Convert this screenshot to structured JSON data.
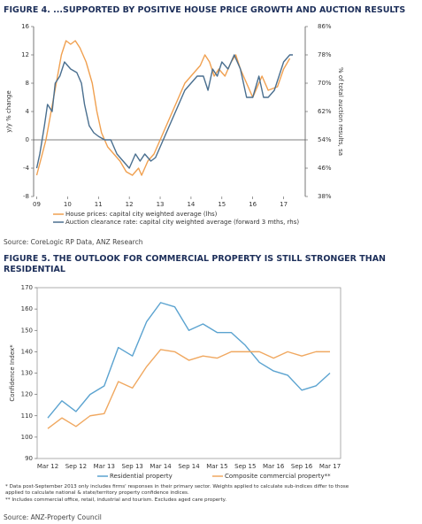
{
  "chart_data": [
    {
      "type": "line",
      "title": "FIGURE 4. ...SUPPORTED BY POSITIVE HOUSE PRICE GROWTH AND AUCTION RESULTS",
      "ylabel": "y/y % change",
      "y2label": "% of total auction results, sa",
      "xlim": [
        2008.9,
        2017.7
      ],
      "xticks": [
        {
          "value": 2009,
          "label": "09"
        },
        {
          "value": 2010,
          "label": "10"
        },
        {
          "value": 2011,
          "label": "11"
        },
        {
          "value": 2012,
          "label": "12"
        },
        {
          "value": 2013,
          "label": "13"
        },
        {
          "value": 2014,
          "label": "14"
        },
        {
          "value": 2015,
          "label": "15"
        },
        {
          "value": 2016,
          "label": "16"
        },
        {
          "value": 2017,
          "label": "17"
        }
      ],
      "ylim": [
        -8,
        16
      ],
      "yticks": [
        -8,
        -4,
        0,
        4,
        8,
        12,
        16
      ],
      "y2lim": [
        38,
        86
      ],
      "y2ticks": [
        {
          "value": 38,
          "label": "38%"
        },
        {
          "value": 46,
          "label": "46%"
        },
        {
          "value": 54,
          "label": "54%"
        },
        {
          "value": 62,
          "label": "62%"
        },
        {
          "value": 70,
          "label": "70%"
        },
        {
          "value": 78,
          "label": "78%"
        },
        {
          "value": 86,
          "label": "86%"
        }
      ],
      "legend": "bottom",
      "series": [
        {
          "name": "House prices: capital city weighted average (lhs)",
          "color": "#f0a050",
          "x": [
            2009.0,
            2009.3,
            2009.55,
            2009.8,
            2009.95,
            2010.1,
            2010.25,
            2010.4,
            2010.6,
            2010.8,
            2010.95,
            2011.1,
            2011.3,
            2011.5,
            2011.7,
            2011.9,
            2012.1,
            2012.3,
            2012.4,
            2012.6,
            2012.8,
            2013.0,
            2013.2,
            2013.4,
            2013.6,
            2013.8,
            2014.0,
            2014.3,
            2014.45,
            2014.6,
            2014.75,
            2014.9,
            2015.1,
            2015.3,
            2015.45,
            2015.6,
            2015.8,
            2016.0,
            2016.2,
            2016.3,
            2016.5,
            2016.8,
            2017.0,
            2017.2
          ],
          "values": [
            -5,
            0,
            6,
            12,
            14,
            13.5,
            14,
            13,
            11,
            8,
            4,
            1,
            -1,
            -2,
            -3,
            -4.5,
            -5,
            -4,
            -5,
            -3,
            -2,
            0,
            2,
            4,
            6,
            8,
            9,
            10.5,
            12,
            11,
            9,
            10,
            9,
            11,
            12,
            10,
            8,
            6,
            8,
            9,
            7,
            7.5,
            10,
            11.5
          ]
        },
        {
          "name": "Auction clearance rate: capital city weighted average (forward 3 mths, rhs)",
          "color": "#4a6f8f",
          "axis": "y2",
          "x": [
            2009.0,
            2009.1,
            2009.25,
            2009.35,
            2009.5,
            2009.6,
            2009.75,
            2009.9,
            2010.1,
            2010.3,
            2010.45,
            2010.55,
            2010.7,
            2010.85,
            2011.0,
            2011.2,
            2011.4,
            2011.6,
            2011.8,
            2012.0,
            2012.2,
            2012.35,
            2012.5,
            2012.7,
            2012.85,
            2013.0,
            2013.2,
            2013.4,
            2013.6,
            2013.8,
            2014.0,
            2014.2,
            2014.4,
            2014.55,
            2014.7,
            2014.85,
            2015.0,
            2015.2,
            2015.4,
            2015.5,
            2015.6,
            2015.8,
            2016.0,
            2016.2,
            2016.35,
            2016.5,
            2016.7,
            2016.85,
            2017.0,
            2017.2,
            2017.3
          ],
          "values": [
            46,
            50,
            58,
            64,
            62,
            70,
            72,
            76,
            74,
            73,
            70,
            64,
            58,
            56,
            55,
            54,
            54,
            50,
            48,
            46,
            50,
            48,
            50,
            48,
            49,
            52,
            56,
            60,
            64,
            68,
            70,
            72,
            72,
            68,
            74,
            72,
            76,
            74,
            78,
            76,
            74,
            66,
            66,
            72,
            66,
            66,
            68,
            72,
            76,
            78,
            78
          ]
        }
      ],
      "source": "Source: CoreLogic RP Data, ANZ Research"
    },
    {
      "type": "line",
      "title": "FIGURE 5. THE OUTLOOK FOR COMMERCIAL PROPERTY IS STILL STRONGER THAN RESIDENTIAL",
      "ylabel": "Confidence Index*",
      "categories": [
        "Mar 12",
        null,
        "Sep 12",
        null,
        "Mar 13",
        null,
        "Sep 13",
        null,
        "Mar 14",
        null,
        "Sep 14",
        null,
        "Mar 15",
        null,
        "Sep 15",
        null,
        "Mar 16",
        null,
        "Sep 16",
        null,
        "Mar 17"
      ],
      "ylim": [
        90,
        170
      ],
      "yticks": [
        90,
        100,
        110,
        120,
        130,
        140,
        150,
        160,
        170
      ],
      "legend": "bottom",
      "series": [
        {
          "name": "Residential property",
          "color": "#5ba3d0",
          "values": [
            109,
            117,
            112,
            120,
            124,
            142,
            138,
            154,
            163,
            161,
            150,
            153,
            149,
            149,
            143,
            135,
            131,
            129,
            122,
            124,
            130
          ]
        },
        {
          "name": "Composite commercial property**",
          "color": "#f0a860",
          "values": [
            104,
            109,
            105,
            110,
            111,
            126,
            123,
            133,
            141,
            140,
            136,
            138,
            137,
            140,
            140,
            140,
            137,
            140,
            138,
            140,
            140
          ]
        }
      ],
      "notes": [
        "*  Data post-September 2013 only includes firms' responses in their primary sector. Weights applied to calculate sub-indices differ to those applied to calculate national & state/territory property confidence indices.",
        "** Includes commercial office, retail, industrial and tourism. Excludes aged care property."
      ],
      "source": "Source: ANZ-Property Council"
    }
  ]
}
